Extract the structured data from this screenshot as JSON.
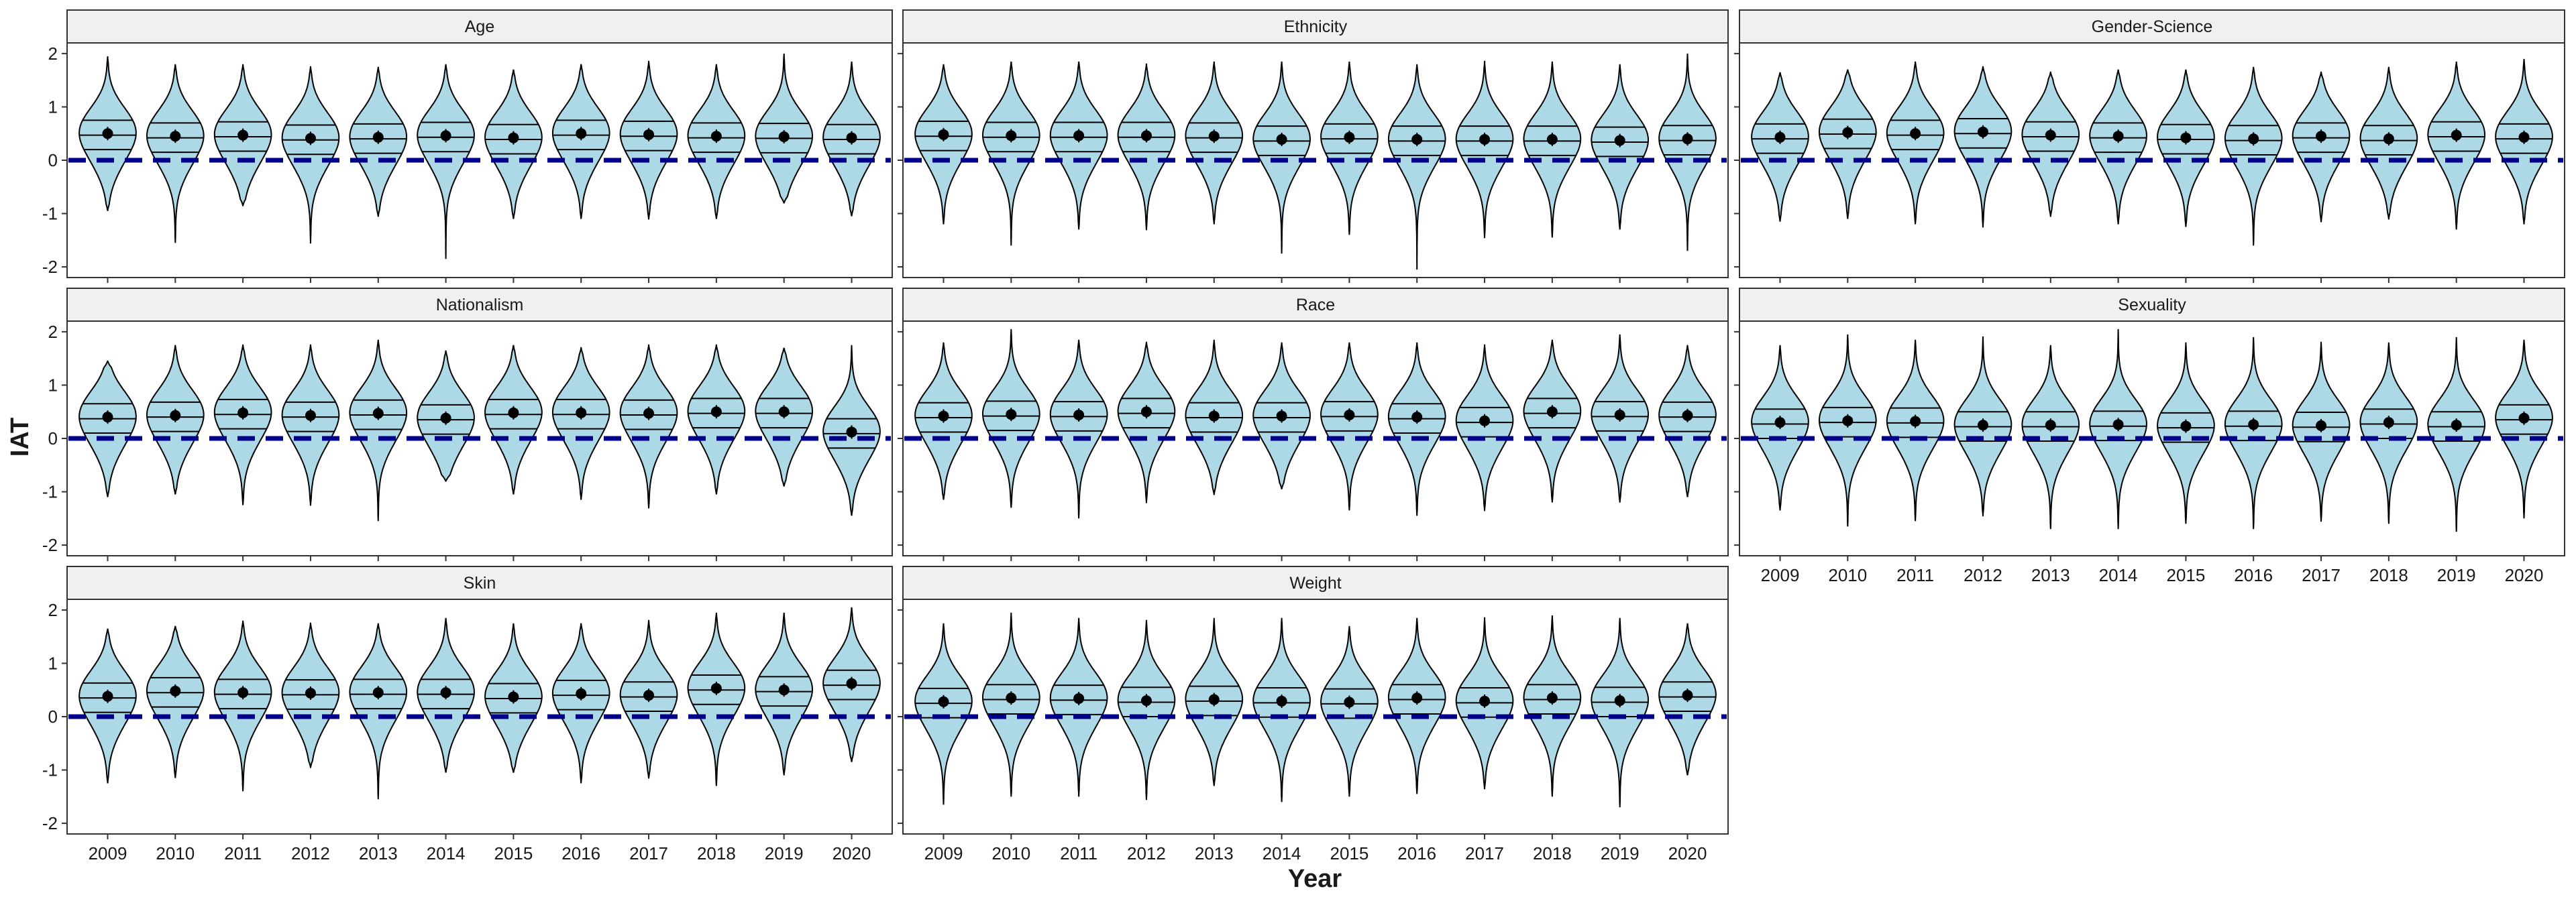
{
  "chart_data": {
    "type": "violin",
    "xlabel": "Year",
    "ylabel": "IAT",
    "ylim": [
      -2.2,
      2.2
    ],
    "y_ticks": [
      -2,
      -1,
      0,
      1,
      2
    ],
    "reference_line": 0,
    "grid": false,
    "layout": "facet_wrap 3x3",
    "colors": {
      "violin_fill": "#add8e6",
      "violin_stroke": "#000000",
      "reference_line": "#00008b",
      "strip_fill": "#f0f0f0",
      "point": "#000000"
    },
    "years": [
      "2009",
      "2010",
      "2011",
      "2012",
      "2013",
      "2014",
      "2015",
      "2016",
      "2017",
      "2018",
      "2019",
      "2020"
    ],
    "panels": [
      {
        "name": "Age",
        "mean": [
          0.5,
          0.45,
          0.47,
          0.41,
          0.43,
          0.46,
          0.42,
          0.5,
          0.48,
          0.45,
          0.44,
          0.42
        ],
        "min": [
          -0.95,
          -1.55,
          -0.85,
          -1.55,
          -1.05,
          -1.85,
          -1.1,
          -1.1,
          -1.1,
          -1.1,
          -0.8,
          -1.05
        ],
        "max": [
          1.95,
          1.8,
          1.8,
          1.75,
          1.75,
          1.8,
          1.7,
          1.8,
          1.85,
          1.8,
          2.0,
          1.85
        ]
      },
      {
        "name": "Ethnicity",
        "mean": [
          0.48,
          0.46,
          0.46,
          0.46,
          0.45,
          0.39,
          0.43,
          0.39,
          0.39,
          0.39,
          0.37,
          0.4
        ],
        "min": [
          -1.2,
          -1.6,
          -1.3,
          -1.3,
          -1.2,
          -1.75,
          -1.4,
          -2.05,
          -1.45,
          -1.45,
          -1.3,
          -1.7
        ],
        "max": [
          1.8,
          1.85,
          1.85,
          1.8,
          1.85,
          1.85,
          1.85,
          1.8,
          1.85,
          1.85,
          1.8,
          2.0
        ]
      },
      {
        "name": "Gender-Science",
        "mean": [
          0.43,
          0.52,
          0.5,
          0.53,
          0.47,
          0.45,
          0.42,
          0.4,
          0.45,
          0.4,
          0.47,
          0.43
        ],
        "min": [
          -1.15,
          -1.1,
          -1.2,
          -1.25,
          -1.05,
          -1.2,
          -1.25,
          -1.6,
          -1.15,
          -1.1,
          -1.3,
          -1.2
        ],
        "max": [
          1.65,
          1.7,
          1.85,
          1.75,
          1.65,
          1.7,
          1.7,
          1.75,
          1.65,
          1.75,
          1.85,
          1.9
        ]
      },
      {
        "name": "Nationalism",
        "mean": [
          0.4,
          0.43,
          0.48,
          0.43,
          0.47,
          0.38,
          0.48,
          0.48,
          0.47,
          0.5,
          0.5,
          0.12
        ],
        "min": [
          -1.1,
          -1.05,
          -1.25,
          -1.25,
          -1.55,
          -0.8,
          -1.05,
          -1.15,
          -1.3,
          -1.05,
          -0.9,
          -1.45
        ],
        "max": [
          1.45,
          1.75,
          1.75,
          1.75,
          1.85,
          1.65,
          1.75,
          1.7,
          1.75,
          1.75,
          1.7,
          1.75
        ]
      },
      {
        "name": "Race",
        "mean": [
          0.42,
          0.45,
          0.44,
          0.5,
          0.42,
          0.42,
          0.44,
          0.4,
          0.33,
          0.5,
          0.44,
          0.43
        ],
        "min": [
          -1.15,
          -1.3,
          -1.5,
          -1.2,
          -1.05,
          -0.95,
          -1.35,
          -1.45,
          -1.35,
          -1.2,
          -1.2,
          -1.1
        ],
        "max": [
          1.8,
          2.05,
          1.85,
          1.8,
          1.85,
          1.8,
          1.8,
          1.8,
          1.75,
          1.85,
          1.95,
          1.75
        ]
      },
      {
        "name": "Sexuality",
        "mean": [
          0.3,
          0.33,
          0.32,
          0.25,
          0.25,
          0.26,
          0.23,
          0.26,
          0.24,
          0.3,
          0.25,
          0.38
        ],
        "min": [
          -1.35,
          -1.65,
          -1.55,
          -1.45,
          -1.7,
          -1.7,
          -1.6,
          -1.7,
          -1.55,
          -1.6,
          -1.75,
          -1.5
        ],
        "max": [
          1.75,
          1.95,
          1.85,
          1.9,
          1.75,
          2.05,
          1.8,
          1.9,
          1.8,
          1.8,
          1.9,
          1.85
        ]
      },
      {
        "name": "Skin",
        "mean": [
          0.38,
          0.48,
          0.45,
          0.44,
          0.45,
          0.45,
          0.37,
          0.43,
          0.4,
          0.53,
          0.5,
          0.62
        ],
        "min": [
          -1.25,
          -1.15,
          -1.4,
          -0.95,
          -1.55,
          -1.05,
          -1.05,
          -1.25,
          -1.15,
          -1.3,
          -1.1,
          -0.85
        ],
        "max": [
          1.65,
          1.7,
          1.8,
          1.75,
          1.75,
          1.85,
          1.75,
          1.75,
          1.8,
          1.95,
          1.95,
          2.05
        ]
      },
      {
        "name": "Weight",
        "mean": [
          0.28,
          0.35,
          0.34,
          0.3,
          0.32,
          0.29,
          0.27,
          0.35,
          0.29,
          0.35,
          0.3,
          0.4
        ],
        "min": [
          -1.65,
          -1.5,
          -1.5,
          -1.55,
          -1.3,
          -1.6,
          -1.5,
          -1.45,
          -1.35,
          -1.5,
          -1.7,
          -1.1
        ],
        "max": [
          1.75,
          1.95,
          1.85,
          1.8,
          1.85,
          1.85,
          1.7,
          1.85,
          1.85,
          1.9,
          1.85,
          1.75
        ]
      }
    ]
  }
}
